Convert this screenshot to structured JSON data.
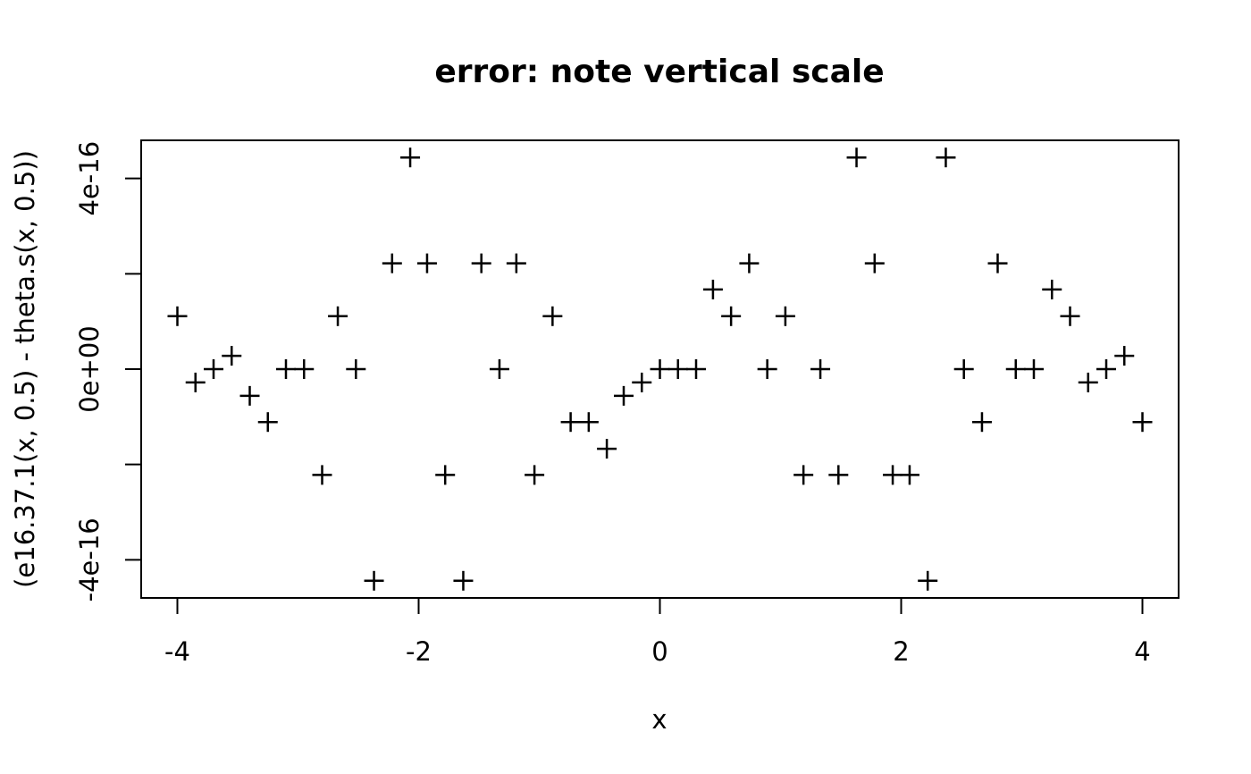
{
  "chart_data": {
    "type": "scatter",
    "title": "error: note vertical scale",
    "xlabel": "x",
    "ylabel": "(e16.37.1(x, 0.5) - theta.s(x, 0.5))",
    "xlim": [
      -4.3,
      4.3
    ],
    "ylim": [
      -4.8e-16,
      4.8e-16
    ],
    "x_ticks": [
      -4,
      -2,
      0,
      2,
      4
    ],
    "x_tick_labels": [
      "-4",
      "-2",
      "0",
      "2",
      "4"
    ],
    "y_ticks": [
      -4e-16,
      -2e-16,
      0,
      2e-16,
      4e-16
    ],
    "y_tick_labels": [
      "-4e-16",
      "",
      "0e+00",
      "",
      "4e-16"
    ],
    "marker": "+",
    "grid": false,
    "legend": "none",
    "points": [
      {
        "x": -4.0,
        "y": 1.11e-16
      },
      {
        "x": -3.85,
        "y": -2.8e-17
      },
      {
        "x": -3.7,
        "y": 0.0
      },
      {
        "x": -3.55,
        "y": 2.8e-17
      },
      {
        "x": -3.4,
        "y": -5.6e-17
      },
      {
        "x": -3.25,
        "y": -1.11e-16
      },
      {
        "x": -3.1,
        "y": 0.0
      },
      {
        "x": -2.95,
        "y": 0.0
      },
      {
        "x": -2.8,
        "y": -2.22e-16
      },
      {
        "x": -2.67,
        "y": 1.11e-16
      },
      {
        "x": -2.52,
        "y": 0.0
      },
      {
        "x": -2.37,
        "y": -4.44e-16
      },
      {
        "x": -2.22,
        "y": 2.22e-16
      },
      {
        "x": -2.07,
        "y": 4.44e-16
      },
      {
        "x": -1.93,
        "y": 2.22e-16
      },
      {
        "x": -1.78,
        "y": -2.22e-16
      },
      {
        "x": -1.63,
        "y": -4.44e-16
      },
      {
        "x": -1.48,
        "y": 2.22e-16
      },
      {
        "x": -1.33,
        "y": 0.0
      },
      {
        "x": -1.19,
        "y": 2.22e-16
      },
      {
        "x": -1.04,
        "y": -2.22e-16
      },
      {
        "x": -0.89,
        "y": 1.11e-16
      },
      {
        "x": -0.74,
        "y": -1.11e-16
      },
      {
        "x": -0.59,
        "y": -1.11e-16
      },
      {
        "x": -0.44,
        "y": -1.67e-16
      },
      {
        "x": -0.3,
        "y": -5.6e-17
      },
      {
        "x": -0.15,
        "y": -2.8e-17
      },
      {
        "x": 0.0,
        "y": 0.0
      },
      {
        "x": 0.15,
        "y": 0.0
      },
      {
        "x": 0.3,
        "y": 0.0
      },
      {
        "x": 0.44,
        "y": 1.67e-16
      },
      {
        "x": 0.59,
        "y": 1.11e-16
      },
      {
        "x": 0.74,
        "y": 2.22e-16
      },
      {
        "x": 0.89,
        "y": 0.0
      },
      {
        "x": 1.04,
        "y": 1.11e-16
      },
      {
        "x": 1.19,
        "y": -2.22e-16
      },
      {
        "x": 1.33,
        "y": 0.0
      },
      {
        "x": 1.48,
        "y": -2.22e-16
      },
      {
        "x": 1.63,
        "y": 4.44e-16
      },
      {
        "x": 1.78,
        "y": 2.22e-16
      },
      {
        "x": 1.93,
        "y": -2.22e-16
      },
      {
        "x": 2.07,
        "y": -2.22e-16
      },
      {
        "x": 2.22,
        "y": -4.44e-16
      },
      {
        "x": 2.37,
        "y": 4.44e-16
      },
      {
        "x": 2.52,
        "y": 0.0
      },
      {
        "x": 2.67,
        "y": -1.11e-16
      },
      {
        "x": 2.8,
        "y": 2.22e-16
      },
      {
        "x": 2.95,
        "y": 0.0
      },
      {
        "x": 3.1,
        "y": 0.0
      },
      {
        "x": 3.25,
        "y": 1.67e-16
      },
      {
        "x": 3.4,
        "y": 1.11e-16
      },
      {
        "x": 3.55,
        "y": -2.8e-17
      },
      {
        "x": 3.7,
        "y": 0.0
      },
      {
        "x": 3.85,
        "y": 2.8e-17
      },
      {
        "x": 4.0,
        "y": -1.11e-16
      }
    ]
  }
}
